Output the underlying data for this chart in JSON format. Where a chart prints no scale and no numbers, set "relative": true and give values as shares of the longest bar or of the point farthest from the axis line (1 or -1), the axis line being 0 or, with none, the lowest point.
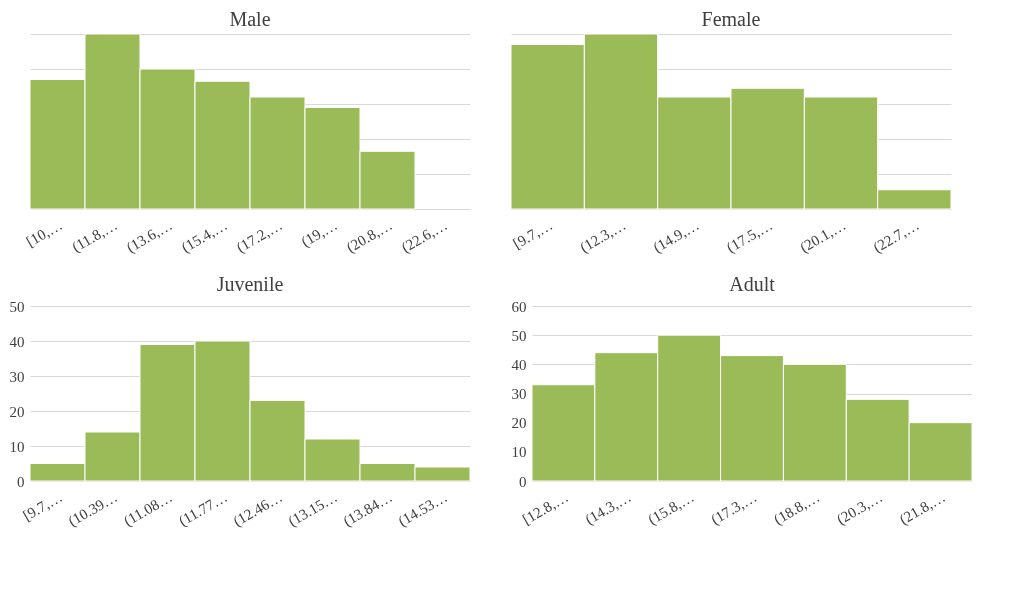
{
  "chart_data": [
    {
      "type": "bar",
      "title": "Male",
      "categories": [
        "[10,…",
        "(11.8,…",
        "(13.6,…",
        "(15.4,…",
        "(17.2,…",
        "(19,…",
        "(20.8,…",
        "(22.6,…"
      ],
      "values": [
        0.74,
        1,
        0.8,
        0.73,
        0.64,
        0.58,
        0.33,
        0
      ],
      "color": "#9bbb59",
      "relative": true,
      "grid": "y"
    },
    {
      "type": "bar",
      "title": "Female",
      "categories": [
        "[9.7,…",
        "(12.3,…",
        "(14.9,…",
        "(17.5,…",
        "(20.1,…",
        "(22.7,…"
      ],
      "values": [
        0.94,
        1,
        0.64,
        0.69,
        0.64,
        0.11
      ],
      "color": "#9bbb59",
      "relative": true,
      "grid": "y"
    },
    {
      "type": "bar",
      "title": "Juvenile",
      "categories": [
        "[9.7,…",
        "(10.39…",
        "(11.08…",
        "(11.77…",
        "(12.46…",
        "(13.15…",
        "(13.84…",
        "(14.53…"
      ],
      "values": [
        5,
        14,
        39,
        40,
        23,
        12,
        5,
        4
      ],
      "color": "#9bbb59",
      "ylim": [
        0,
        50
      ],
      "yticks": [
        0,
        10,
        20,
        30,
        40,
        50
      ],
      "grid": "y"
    },
    {
      "type": "bar",
      "title": "Adult",
      "categories": [
        "[12.8,…",
        "(14.3,…",
        "(15.8,…",
        "(17.3,…",
        "(18.8,…",
        "(20.3,…",
        "(21.8,…"
      ],
      "values": [
        33,
        44,
        50,
        43,
        40,
        28,
        20
      ],
      "color": "#9bbb59",
      "ylim": [
        0,
        60
      ],
      "yticks": [
        0,
        10,
        20,
        30,
        40,
        50,
        60
      ],
      "grid": "y"
    }
  ]
}
